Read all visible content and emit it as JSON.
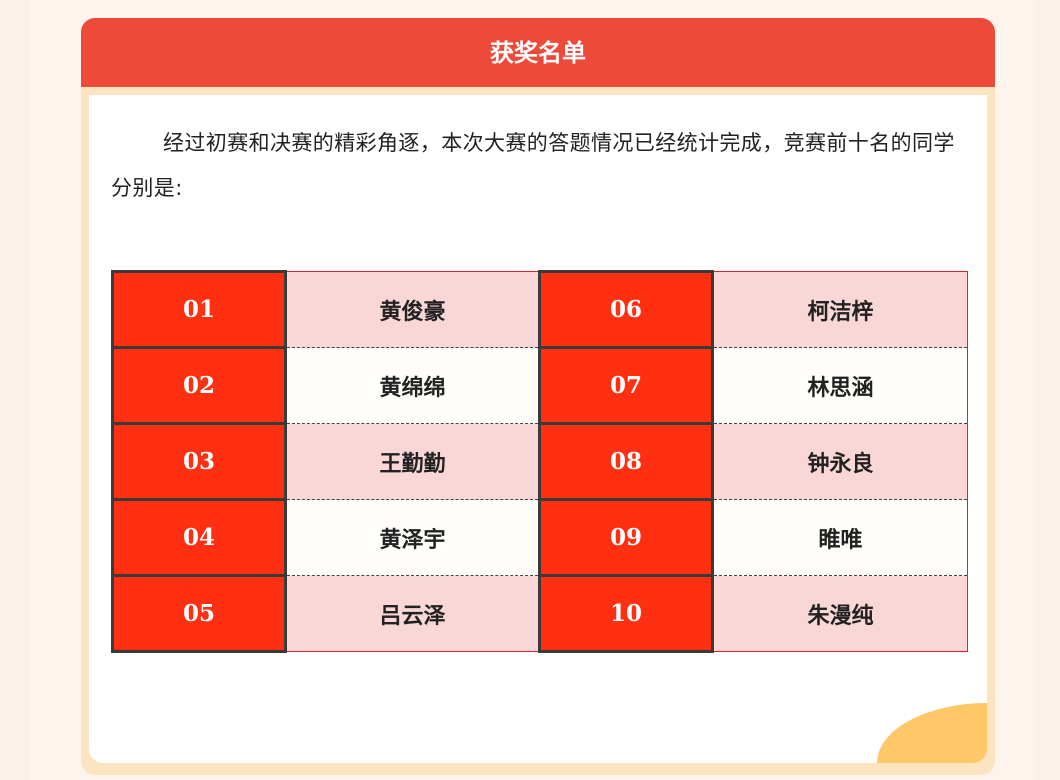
{
  "header": {
    "title": "获奖名单"
  },
  "intro": "经过初赛和决赛的精彩角逐，本次大赛的答题情况已经统计完成，竞赛前十名的同学分别是:",
  "rows": [
    {
      "left": {
        "rank": "01",
        "name": "黄俊豪"
      },
      "right": {
        "rank": "06",
        "name": "柯洁梓"
      }
    },
    {
      "left": {
        "rank": "02",
        "name": "黄绵绵"
      },
      "right": {
        "rank": "07",
        "name": "林思涵"
      }
    },
    {
      "left": {
        "rank": "03",
        "name": "王勤勤"
      },
      "right": {
        "rank": "08",
        "name": "钟永良"
      }
    },
    {
      "left": {
        "rank": "04",
        "name": "黄泽宇"
      },
      "right": {
        "rank": "09",
        "name": "睢唯"
      }
    },
    {
      "left": {
        "rank": "05",
        "name": "吕云泽"
      },
      "right": {
        "rank": "10",
        "name": "朱漫纯"
      }
    }
  ],
  "colors": {
    "header": "#ee4a3a",
    "rank_cell": "#ff2f12",
    "pink_row": "#f9d7d7",
    "frame": "#fde4c0"
  }
}
